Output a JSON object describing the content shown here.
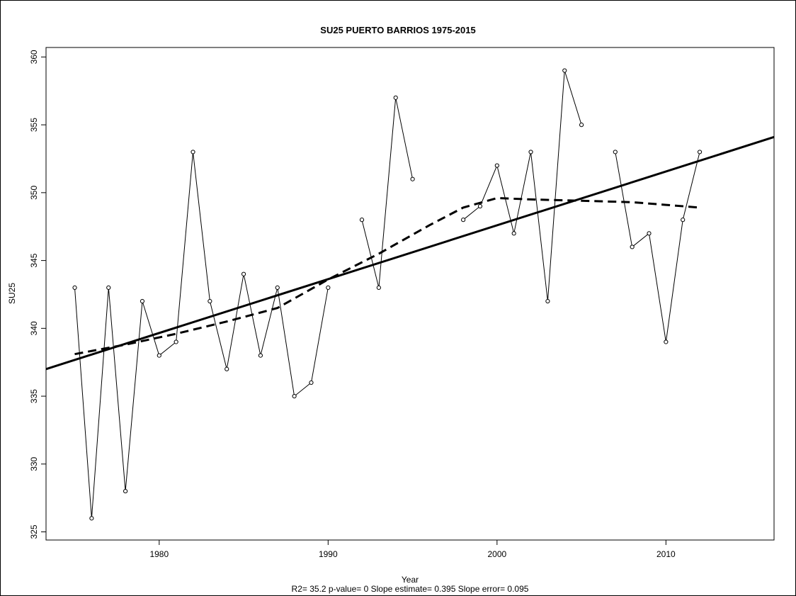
{
  "chart_data": {
    "type": "line",
    "title": "SU25   PUERTO BARRIOS 1975-2015",
    "xlabel": "Year",
    "ylabel": "SU25",
    "footnote": "R2= 35.2  p-value= 0  Slope estimate= 0.395  Slope error= 0.095",
    "xlim": [
      1973.3,
      2016.4
    ],
    "ylim": [
      324.4,
      360.7
    ],
    "x_ticks": [
      1980,
      1990,
      2000,
      2010
    ],
    "y_ticks": [
      325,
      330,
      335,
      340,
      345,
      350,
      355,
      360
    ],
    "grid": false,
    "observations": {
      "x": [
        1975,
        1976,
        1977,
        1978,
        1979,
        1980,
        1981,
        1982,
        1983,
        1984,
        1985,
        1986,
        1987,
        1988,
        1989,
        1990,
        1991,
        1992,
        1993,
        1994,
        1995,
        1996,
        1997,
        1998,
        1999,
        2000,
        2001,
        2002,
        2003,
        2004,
        2005,
        2006,
        2007,
        2008,
        2009,
        2010,
        2011,
        2012
      ],
      "y": [
        343,
        326,
        343,
        328,
        342,
        338,
        339,
        353,
        342,
        337,
        344,
        338,
        343,
        335,
        336,
        343,
        null,
        348,
        343,
        357,
        351,
        null,
        null,
        348,
        349,
        352,
        347,
        353,
        342,
        359,
        355,
        null,
        353,
        346,
        347,
        339,
        348,
        353
      ]
    },
    "trend_line": {
      "x": [
        1973.3,
        2016.4
      ],
      "y": [
        337.0,
        354.1
      ]
    },
    "smooth_line": {
      "x": [
        1975,
        1978,
        1981,
        1984,
        1987,
        1990,
        1993,
        1996,
        1998,
        2000,
        2002,
        2005,
        2008,
        2010,
        2012
      ],
      "y": [
        338.1,
        338.8,
        339.6,
        340.5,
        341.5,
        343.6,
        345.5,
        347.6,
        348.9,
        349.6,
        349.5,
        349.4,
        349.3,
        349.1,
        348.9
      ]
    }
  }
}
